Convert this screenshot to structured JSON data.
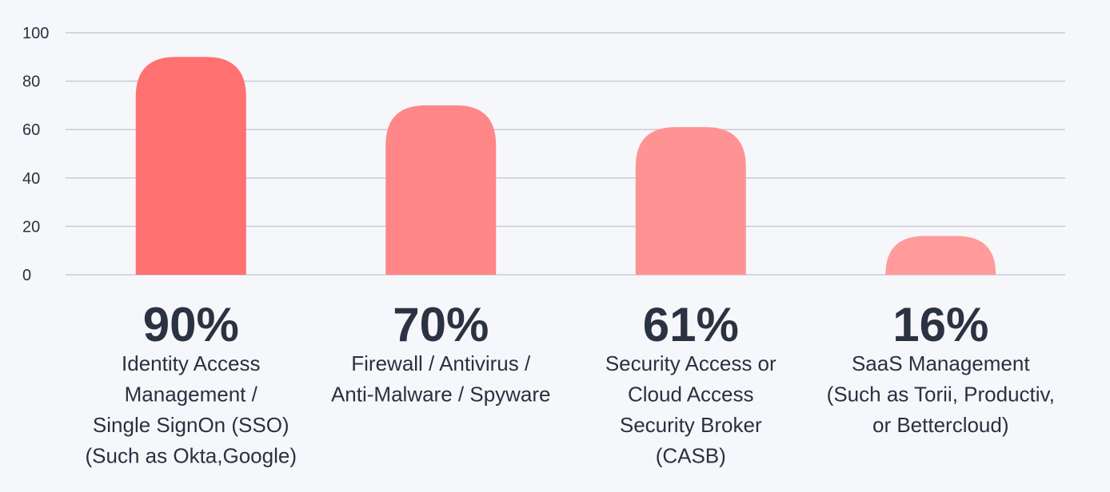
{
  "chart_data": {
    "type": "bar",
    "categories": [
      [
        "Identity Access",
        "Management /",
        "Single SignOn (SSO)",
        "(Such as Okta,Google)"
      ],
      [
        "Firewall / Antivirus /",
        "Anti-Malware / Spyware"
      ],
      [
        "Security Access or",
        "Cloud Access",
        "Security Broker",
        "(CASB)"
      ],
      [
        "SaaS Management",
        "(Such as Torii, Productiv,",
        "or Bettercloud)"
      ]
    ],
    "values": [
      90,
      70,
      61,
      16
    ],
    "value_labels": [
      "90%",
      "70%",
      "61%",
      "16%"
    ],
    "bar_colors": [
      "#ff7070",
      "#ff8787",
      "#ff9393",
      "#ff9b9b"
    ],
    "yticks": [
      "0",
      "20",
      "40",
      "60",
      "80",
      "100"
    ],
    "ylim": [
      0,
      100
    ],
    "title": "",
    "xlabel": "",
    "ylabel": "",
    "grid": true
  }
}
